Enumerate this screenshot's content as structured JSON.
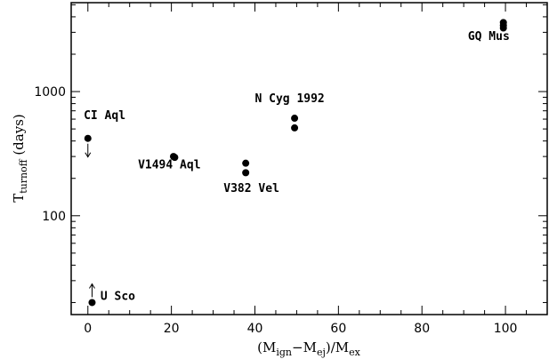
{
  "chart_data": {
    "type": "scatter",
    "title": "",
    "xlabel": {
      "main": "(M",
      "sub1": "ign",
      "mid": "−M",
      "sub2": "ej",
      "slash": ")/M",
      "sub3": "ex"
    },
    "ylabel": {
      "main": "T",
      "sub": "turnoff",
      "rest": "  (days)"
    },
    "xlim": [
      -4,
      110
    ],
    "ylim": [
      16,
      5200
    ],
    "yscale": "log",
    "grid": false,
    "x_ticks": [
      {
        "value": 0,
        "label": "0"
      },
      {
        "value": 20,
        "label": "20"
      },
      {
        "value": 40,
        "label": "40"
      },
      {
        "value": 60,
        "label": "60"
      },
      {
        "value": 80,
        "label": "80"
      },
      {
        "value": 100,
        "label": "100"
      }
    ],
    "y_major_ticks": [
      {
        "value": 100,
        "label": "100"
      },
      {
        "value": 1000,
        "label": "1000"
      }
    ],
    "points": [
      {
        "x": 0,
        "y": 420
      },
      {
        "x": 20.5,
        "y": 300
      },
      {
        "x": 20.8,
        "y": 295
      },
      {
        "x": 37.8,
        "y": 265
      },
      {
        "x": 37.8,
        "y": 222
      },
      {
        "x": 49.5,
        "y": 610
      },
      {
        "x": 49.5,
        "y": 510
      },
      {
        "x": 99.5,
        "y": 3600
      },
      {
        "x": 99.5,
        "y": 3400
      },
      {
        "x": 99.5,
        "y": 3250
      },
      {
        "x": 1,
        "y": 20
      }
    ],
    "arrows": [
      {
        "x": 0,
        "y": 420,
        "direction": "down"
      },
      {
        "x": 1,
        "y": 20,
        "direction": "up"
      }
    ],
    "annotations": [
      {
        "text": "CI Aql",
        "x": -1,
        "y": 600
      },
      {
        "text": "V1494 Aql",
        "x": 12,
        "y": 240
      },
      {
        "text": "V382 Vel",
        "x": 32.5,
        "y": 155
      },
      {
        "text": "N Cyg 1992",
        "x": 40,
        "y": 820
      },
      {
        "text": "GQ Mus",
        "x": 91,
        "y": 2600
      },
      {
        "text": "U Sco",
        "x": 3,
        "y": 21
      }
    ]
  }
}
